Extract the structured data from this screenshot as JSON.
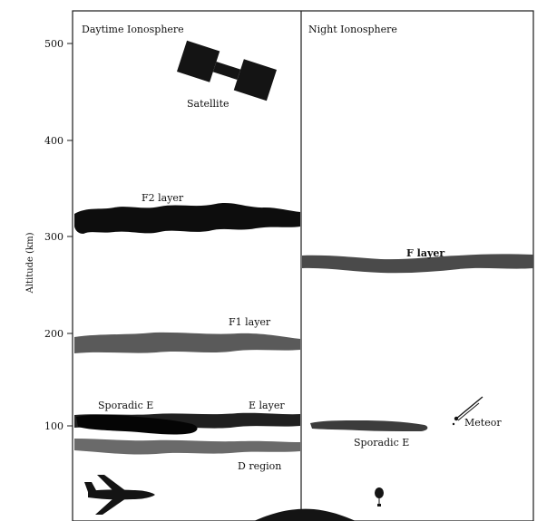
{
  "axis": {
    "title": "Altitude (km)",
    "min": 0,
    "max": 520,
    "ticks": [
      {
        "value": 500,
        "label": "500"
      },
      {
        "value": 400,
        "label": "400"
      },
      {
        "value": 300,
        "label": "300"
      },
      {
        "value": 200,
        "label": "200"
      },
      {
        "value": 100,
        "label": "100"
      }
    ]
  },
  "panels": {
    "day": {
      "title": "Daytime Ionosphere"
    },
    "night": {
      "title": "Night Ionosphere"
    }
  },
  "layers": {
    "f2": {
      "label": "F2 layer",
      "altitude_km": 315,
      "color": "#0d0d0d"
    },
    "f1": {
      "label": "F1 layer",
      "altitude_km": 183,
      "color": "#5a5a5a"
    },
    "e": {
      "label": "E layer",
      "altitude_km": 100,
      "color": "#202020"
    },
    "sporadic_e_day": {
      "label": "Sporadic E",
      "altitude_km": 100,
      "color": "#050505"
    },
    "d": {
      "label": "D region",
      "altitude_km": 75,
      "color": "#6a6a6a"
    },
    "f_night": {
      "label": "F layer",
      "altitude_km": 270,
      "color": "#4a4a4a"
    },
    "sporadic_e_night": {
      "label": "Sporadic E",
      "altitude_km": 95,
      "color": "#3c3c3c"
    }
  },
  "objects": {
    "satellite": {
      "label": "Satellite",
      "altitude_km": 470
    },
    "meteor": {
      "label": "Meteor",
      "altitude_km": 105
    },
    "airplane": {
      "altitude_km": 10
    },
    "balloon": {
      "altitude_km": 10
    }
  }
}
